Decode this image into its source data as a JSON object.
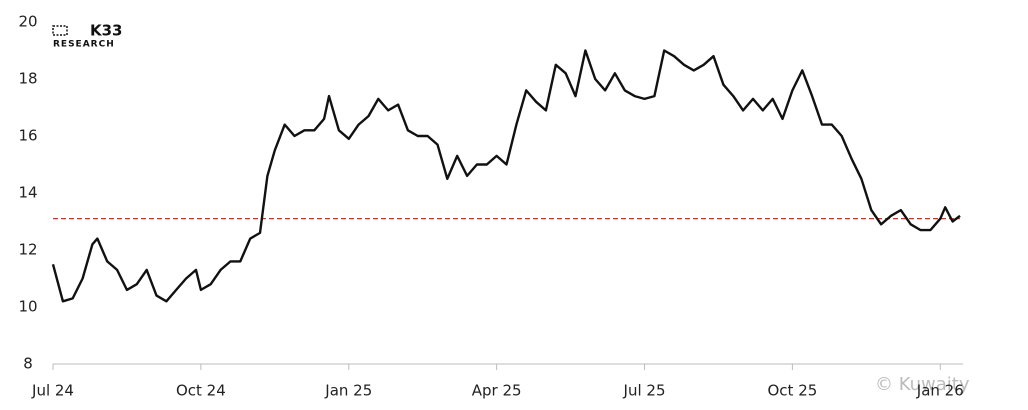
{
  "chart_data": {
    "type": "line",
    "logo_text": "K33",
    "logo_subtext": "RESEARCH",
    "watermark": "© Kuwaity",
    "x": [
      0,
      0.2,
      0.4,
      0.6,
      0.8,
      0.9,
      1.1,
      1.3,
      1.5,
      1.7,
      1.9,
      2.1,
      2.3,
      2.5,
      2.7,
      2.9,
      3.0,
      3.2,
      3.4,
      3.6,
      3.8,
      4.0,
      4.2,
      4.35,
      4.5,
      4.7,
      4.9,
      5.1,
      5.3,
      5.5,
      5.6,
      5.8,
      6.0,
      6.2,
      6.4,
      6.6,
      6.8,
      7.0,
      7.2,
      7.4,
      7.6,
      7.8,
      8.0,
      8.2,
      8.4,
      8.6,
      8.8,
      9.0,
      9.2,
      9.4,
      9.6,
      9.8,
      10.0,
      10.2,
      10.4,
      10.6,
      10.8,
      11.0,
      11.2,
      11.4,
      11.6,
      11.8,
      12.0,
      12.2,
      12.4,
      12.6,
      12.8,
      13.0,
      13.2,
      13.4,
      13.6,
      13.8,
      14.0,
      14.2,
      14.4,
      14.6,
      14.8,
      15.0,
      15.2,
      15.4,
      15.6,
      15.8,
      16.0,
      16.2,
      16.4,
      16.6,
      16.8,
      17.0,
      17.2,
      17.4,
      17.6,
      17.8,
      18.0,
      18.1,
      18.25,
      18.4
    ],
    "series": [
      {
        "color": "#111111",
        "values": [
          11.5,
          10.2,
          10.3,
          11.0,
          12.2,
          12.4,
          11.6,
          11.3,
          10.6,
          10.8,
          11.3,
          10.4,
          10.2,
          10.6,
          11.0,
          11.3,
          10.6,
          10.8,
          11.3,
          11.6,
          11.6,
          12.4,
          12.6,
          14.6,
          15.5,
          16.4,
          16.0,
          16.2,
          16.2,
          16.6,
          17.4,
          16.2,
          15.9,
          16.4,
          16.7,
          17.3,
          16.9,
          17.1,
          16.2,
          16.0,
          16.0,
          15.7,
          14.5,
          15.3,
          14.6,
          15.0,
          15.0,
          15.3,
          15.0,
          16.4,
          17.6,
          17.2,
          16.9,
          18.5,
          18.2,
          17.4,
          19.0,
          18.0,
          17.6,
          18.2,
          17.6,
          17.4,
          17.3,
          17.4,
          19.0,
          18.8,
          18.5,
          18.3,
          18.5,
          18.8,
          17.8,
          17.4,
          16.9,
          17.3,
          16.9,
          17.3,
          16.6,
          17.6,
          18.3,
          17.4,
          16.4,
          16.4,
          16.0,
          15.2,
          14.5,
          13.4,
          12.9,
          13.2,
          13.4,
          12.9,
          12.7,
          12.7,
          13.1,
          13.5,
          13.0,
          13.2
        ]
      }
    ],
    "reference_line": {
      "value": 13.1,
      "color": "#c0392b"
    },
    "xlim": [
      0,
      18.4
    ],
    "xticks": [
      {
        "value": 0,
        "label": "Jul 24"
      },
      {
        "value": 3,
        "label": "Oct 24"
      },
      {
        "value": 6,
        "label": "Jan 25"
      },
      {
        "value": 9,
        "label": "Apr 25"
      },
      {
        "value": 12,
        "label": "Jul 25"
      },
      {
        "value": 15,
        "label": "Oct 25"
      },
      {
        "value": 18,
        "label": "Jan 26"
      }
    ],
    "ylim": [
      8,
      20
    ],
    "yticks": [
      8,
      10,
      12,
      14,
      16,
      18,
      20
    ]
  }
}
